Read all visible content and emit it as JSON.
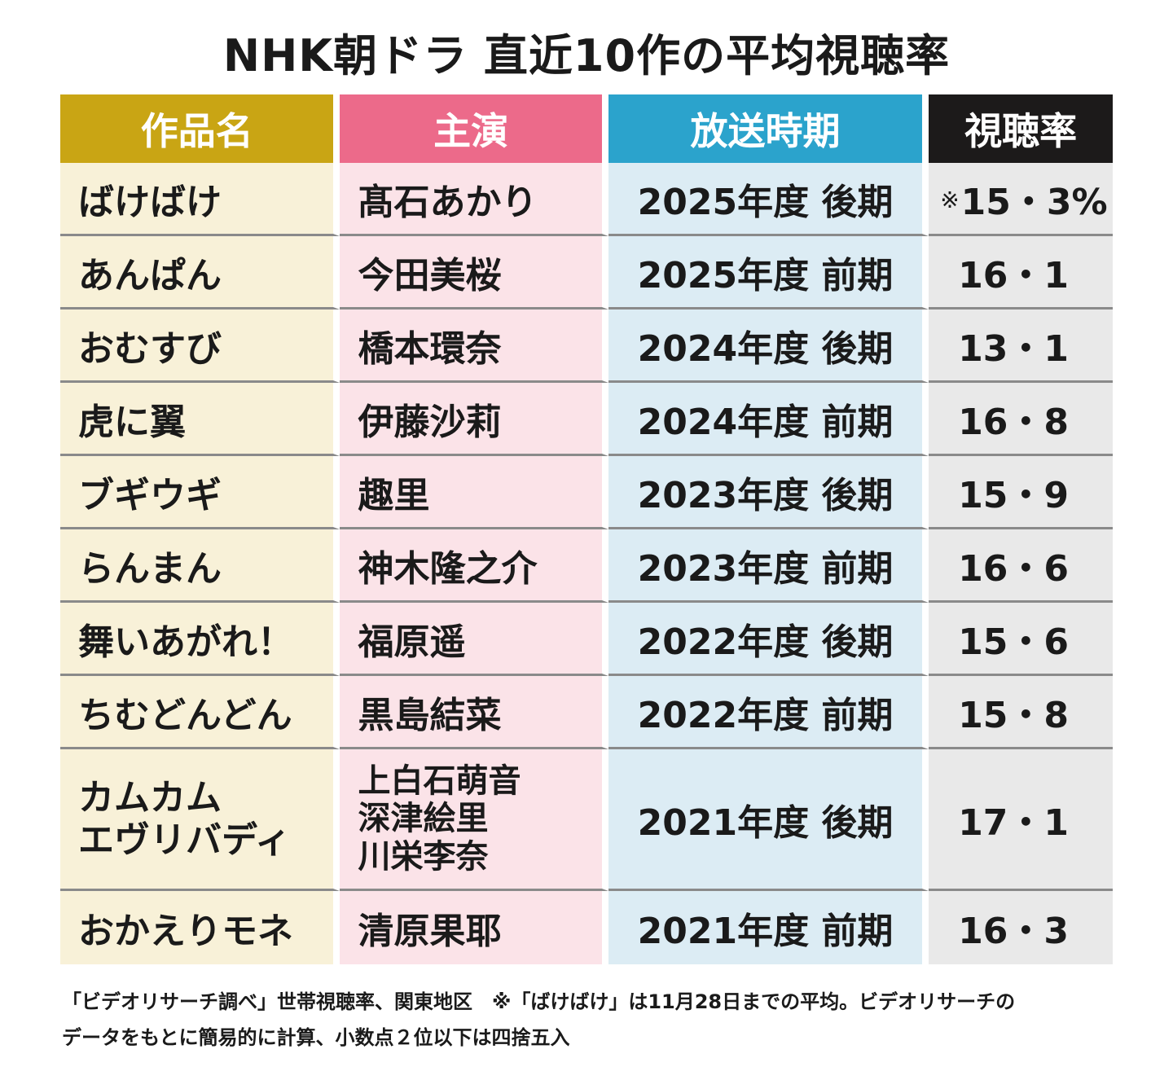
{
  "title": "NHK朝ドラ 直近10作の平均視聴率",
  "headers": {
    "work": "作品名",
    "lead": "主演",
    "period": "放送時期",
    "rating": "視聴率"
  },
  "colors": {
    "work_header": "#c9a514",
    "lead_header": "#ec6a8a",
    "period_header": "#2ba3cc",
    "rating_header": "#1c1a1a",
    "work_cell": "#f8f1d8",
    "lead_cell": "#fbe3e8",
    "period_cell": "#dcecf4",
    "rating_cell": "#e9e9e9"
  },
  "rows": [
    {
      "work": "ばけばけ",
      "lead": "髙石あかり",
      "period": "2025年度 後期",
      "rating_note": "※",
      "rating": "15・3%"
    },
    {
      "work": "あんぱん",
      "lead": "今田美桜",
      "period": "2025年度 前期",
      "rating": "16・1"
    },
    {
      "work": "おむすび",
      "lead": "橋本環奈",
      "period": "2024年度 後期",
      "rating": "13・1"
    },
    {
      "work": "虎に翼",
      "lead": "伊藤沙莉",
      "period": "2024年度 前期",
      "rating": "16・8"
    },
    {
      "work": "ブギウギ",
      "lead": "趣里",
      "period": "2023年度 後期",
      "rating": "15・9"
    },
    {
      "work": "らんまん",
      "lead": "神木隆之介",
      "period": "2023年度 前期",
      "rating": "16・6"
    },
    {
      "work": "舞いあがれ！",
      "lead": "福原遥",
      "period": "2022年度 後期",
      "rating": "15・6"
    },
    {
      "work": "ちむどんどん",
      "lead": "黒島結菜",
      "period": "2022年度 前期",
      "rating": "15・8"
    },
    {
      "work_lines": [
        "カムカム",
        "エヴリバディ"
      ],
      "lead_lines": [
        "上白石萌音",
        "深津絵里",
        "川栄李奈"
      ],
      "period": "2021年度 後期",
      "rating": "17・1"
    },
    {
      "work": "おかえりモネ",
      "lead": "清原果耶",
      "period": "2021年度 前期",
      "rating": "16・3"
    }
  ],
  "footnote": {
    "line1": "「ビデオリサーチ調べ」世帯視聴率、関東地区　※「ばけばけ」は11月28日までの平均。ビデオリサーチの",
    "line2": "データをもとに簡易的に計算、小数点２位以下は四捨五入"
  },
  "chart_data": {
    "type": "table",
    "title": "NHK朝ドラ 直近10作の平均視聴率",
    "columns": [
      "作品名",
      "主演",
      "放送時期",
      "視聴率"
    ],
    "rows": [
      [
        "ばけばけ",
        "髙石あかり",
        "2025年度 後期",
        15.3
      ],
      [
        "あんぱん",
        "今田美桜",
        "2025年度 前期",
        16.1
      ],
      [
        "おむすび",
        "橋本環奈",
        "2024年度 後期",
        13.1
      ],
      [
        "虎に翼",
        "伊藤沙莉",
        "2024年度 前期",
        16.8
      ],
      [
        "ブギウギ",
        "趣里",
        "2023年度 後期",
        15.9
      ],
      [
        "らんまん",
        "神木隆之介",
        "2023年度 前期",
        16.6
      ],
      [
        "舞いあがれ！",
        "福原遥",
        "2022年度 後期",
        15.6
      ],
      [
        "ちむどんどん",
        "黒島結菜",
        "2022年度 前期",
        15.8
      ],
      [
        "カムカム エヴリバディ",
        "上白石萌音 深津絵里 川栄李奈",
        "2021年度 後期",
        17.1
      ],
      [
        "おかえりモネ",
        "清原果耶",
        "2021年度 前期",
        16.3
      ]
    ]
  }
}
